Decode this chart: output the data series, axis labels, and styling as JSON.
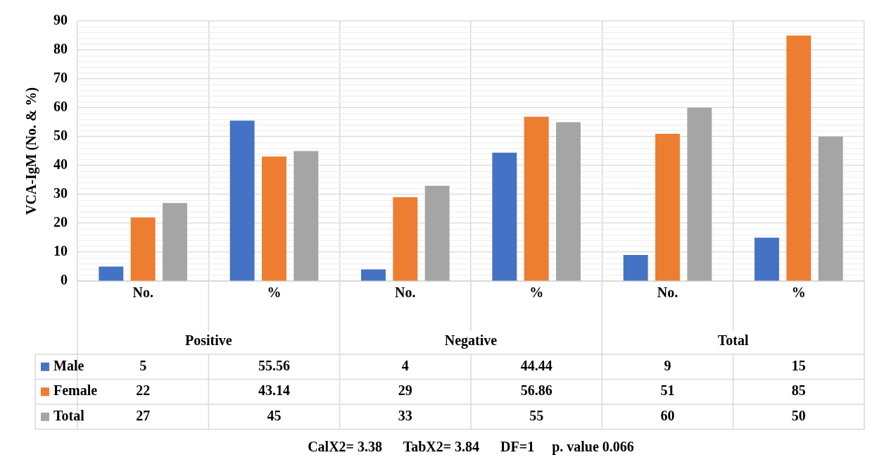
{
  "chart_data": {
    "type": "bar",
    "ylabel": "VCA-IgM (No. & %)",
    "categories": [
      "No.",
      "%",
      "No.",
      "%",
      "No.",
      "%"
    ],
    "series": [
      {
        "name": "Male",
        "color": "#4472c4",
        "values": [
          5,
          55.56,
          4,
          44.44,
          9,
          15
        ]
      },
      {
        "name": "Female",
        "color": "#ed7d31",
        "values": [
          22,
          43.14,
          29,
          56.86,
          51,
          85
        ]
      },
      {
        "name": "Total",
        "color": "#a5a5a5",
        "values": [
          27,
          45,
          33,
          55,
          60,
          50
        ]
      }
    ],
    "ylim": [
      0,
      90
    ],
    "yticks": [
      0,
      {
        "value": 2,
        "label": null
      },
      {
        "value": 4,
        "label": null
      },
      {
        "value": 6,
        "label": null
      },
      {
        "value": 8,
        "label": null
      },
      10,
      {
        "value": 12,
        "label": null
      },
      {
        "value": 14,
        "label": null
      },
      {
        "value": 16,
        "label": null
      },
      {
        "value": 18,
        "label": null
      },
      20,
      {
        "value": 22,
        "label": null
      },
      {
        "value": 24,
        "label": null
      },
      {
        "value": 26,
        "label": null
      },
      {
        "value": 28,
        "label": null
      },
      30,
      {
        "value": 32,
        "label": null
      },
      {
        "value": 34,
        "label": null
      },
      {
        "value": 36,
        "label": null
      },
      {
        "value": 38,
        "label": null
      },
      40,
      {
        "value": 42,
        "label": null
      },
      {
        "value": 44,
        "label": null
      },
      {
        "value": 46,
        "label": null
      },
      {
        "value": 48,
        "label": null
      },
      50,
      {
        "value": 52,
        "label": null
      },
      {
        "value": 54,
        "label": null
      },
      {
        "value": 56,
        "label": null
      },
      {
        "value": 58,
        "label": null
      },
      60,
      {
        "value": 62,
        "label": null
      },
      {
        "value": 64,
        "label": null
      },
      {
        "value": 66,
        "label": null
      },
      {
        "value": 68,
        "label": null
      },
      70,
      {
        "value": 72,
        "label": null
      },
      {
        "value": 74,
        "label": null
      },
      {
        "value": 76,
        "label": null
      },
      {
        "value": 78,
        "label": null
      },
      80,
      {
        "value": 82,
        "label": null
      },
      {
        "value": 84,
        "label": null
      },
      {
        "value": 86,
        "label": null
      },
      {
        "value": 88,
        "label": null
      },
      90
    ],
    "grid": true,
    "legend": "bottom",
    "data_labels": true,
    "annotations": [
      "Positive",
      "Negative",
      "Total",
      "CalX2= 3.38      TabX2= 3.84      DF=1     p. value 0.066"
    ]
  }
}
